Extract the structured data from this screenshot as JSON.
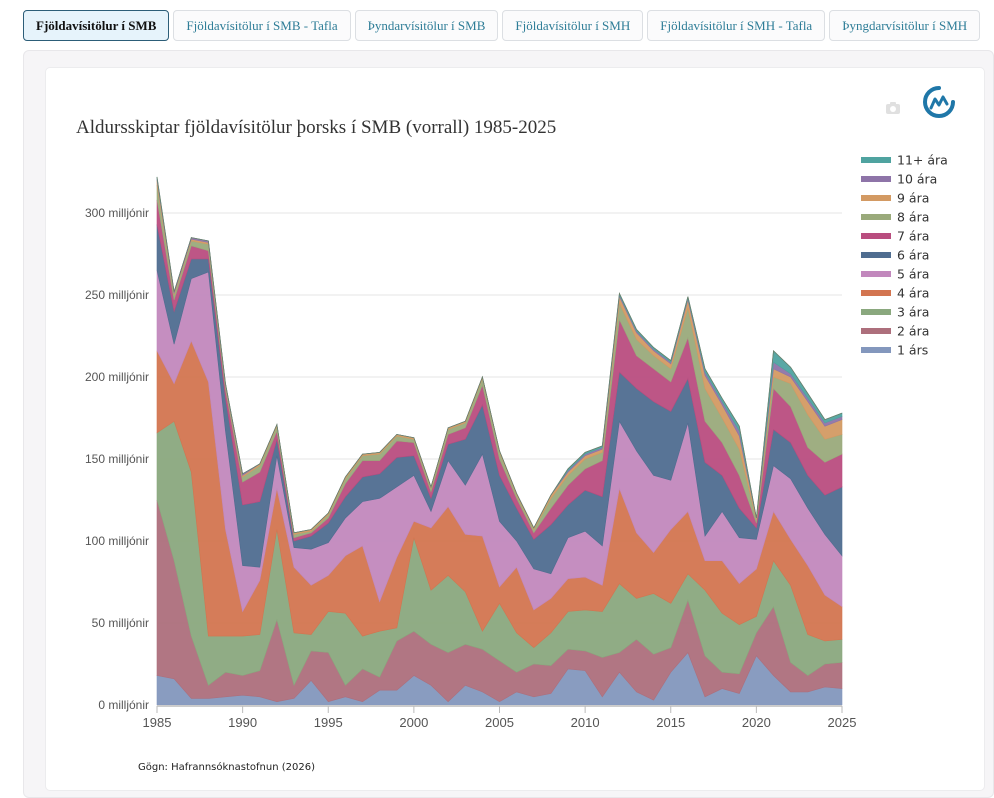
{
  "tabs": [
    {
      "label": "Fjöldavísitölur í SMB",
      "active": true
    },
    {
      "label": "Fjöldavísitölur í SMB - Tafla",
      "active": false
    },
    {
      "label": "Þyndarvísitölur í SMB",
      "active": false
    },
    {
      "label": "Fjöldavísitölur í SMH",
      "active": false
    },
    {
      "label": "Fjöldavísitölur í SMH - Tafla",
      "active": false
    },
    {
      "label": "Þyngdarvísitölur í SMH",
      "active": false
    }
  ],
  "source_note": "Gögn: Hafrannsóknastofnun (2026)",
  "icons": {
    "logo": "hafro-wave-logo-icon",
    "camera": "camera-icon"
  },
  "chart_data": {
    "type": "area",
    "stacked": true,
    "title": "Aldursskiptar fjöldavísitölur þorsks í SMB (vorrall) 1985-2025",
    "xlabel": "",
    "ylabel": "",
    "xlim": [
      1985,
      2025
    ],
    "ylim": [
      0,
      330
    ],
    "x_ticks": [
      1985,
      1990,
      1995,
      2000,
      2005,
      2010,
      2015,
      2020,
      2025
    ],
    "y_ticks": [
      0,
      50,
      100,
      150,
      200,
      250,
      300
    ],
    "y_tick_suffix": " milljónir",
    "grid": true,
    "legend_position": "right",
    "x": [
      1985,
      1986,
      1987,
      1988,
      1989,
      1990,
      1991,
      1992,
      1993,
      1994,
      1995,
      1996,
      1997,
      1998,
      1999,
      2000,
      2001,
      2002,
      2003,
      2004,
      2005,
      2006,
      2007,
      2008,
      2009,
      2010,
      2011,
      2012,
      2013,
      2014,
      2015,
      2016,
      2017,
      2018,
      2019,
      2020,
      2021,
      2022,
      2023,
      2024,
      2025
    ],
    "series": [
      {
        "name": "1 árs",
        "color": "#8397bd",
        "values": [
          18,
          16,
          4,
          4,
          5,
          6,
          5,
          2,
          4,
          15,
          2,
          5,
          2,
          9,
          9,
          18,
          12,
          2,
          12,
          8,
          2,
          8,
          5,
          7,
          22,
          21,
          5,
          20,
          8,
          3,
          20,
          32,
          5,
          10,
          7,
          30,
          18,
          8,
          8,
          11,
          10
        ]
      },
      {
        "name": "2 ára",
        "color": "#ad6f7c",
        "values": [
          107,
          72,
          38,
          8,
          15,
          12,
          16,
          50,
          8,
          18,
          30,
          7,
          20,
          8,
          30,
          27,
          25,
          30,
          25,
          26,
          25,
          12,
          20,
          17,
          12,
          12,
          24,
          12,
          32,
          28,
          15,
          32,
          25,
          10,
          12,
          14,
          42,
          18,
          10,
          14,
          16
        ]
      },
      {
        "name": "3 ára",
        "color": "#8aa87e",
        "values": [
          41,
          85,
          100,
          30,
          22,
          24,
          22,
          55,
          32,
          10,
          25,
          44,
          20,
          28,
          8,
          57,
          33,
          47,
          32,
          11,
          35,
          24,
          10,
          20,
          23,
          25,
          28,
          42,
          25,
          37,
          27,
          16,
          40,
          36,
          30,
          10,
          28,
          47,
          25,
          14,
          14
        ]
      },
      {
        "name": "4 ára",
        "color": "#d37550",
        "values": [
          50,
          23,
          80,
          155,
          65,
          15,
          33,
          25,
          40,
          30,
          22,
          35,
          55,
          18,
          43,
          10,
          38,
          42,
          35,
          58,
          10,
          40,
          23,
          21,
          20,
          20,
          16,
          58,
          40,
          25,
          45,
          38,
          18,
          32,
          25,
          29,
          30,
          28,
          42,
          28,
          20
        ]
      },
      {
        "name": "5 ára",
        "color": "#c288bd",
        "values": [
          49,
          24,
          38,
          67,
          60,
          28,
          8,
          20,
          12,
          22,
          20,
          23,
          27,
          63,
          43,
          28,
          10,
          28,
          30,
          50,
          40,
          16,
          25,
          15,
          25,
          28,
          24,
          41,
          50,
          47,
          30,
          54,
          15,
          30,
          28,
          18,
          28,
          37,
          35,
          37,
          31
        ]
      },
      {
        "name": "6 ára",
        "color": "#4f6d90",
        "values": [
          28,
          20,
          12,
          8,
          20,
          37,
          40,
          10,
          4,
          8,
          12,
          13,
          15,
          15,
          18,
          12,
          8,
          10,
          28,
          30,
          28,
          20,
          18,
          30,
          20,
          25,
          30,
          30,
          38,
          45,
          42,
          27,
          45,
          22,
          18,
          7,
          22,
          22,
          20,
          24,
          42
        ]
      },
      {
        "name": "7 ára",
        "color": "#b94d7f",
        "values": [
          15,
          7,
          8,
          5,
          5,
          14,
          18,
          5,
          2,
          2,
          3,
          8,
          10,
          8,
          10,
          8,
          4,
          6,
          7,
          12,
          10,
          6,
          4,
          10,
          12,
          13,
          22,
          32,
          20,
          20,
          18,
          25,
          25,
          20,
          20,
          3,
          25,
          22,
          17,
          20,
          20
        ]
      },
      {
        "name": "8 ára",
        "color": "#9aaa7b",
        "values": [
          9,
          3,
          3,
          4,
          2,
          3,
          4,
          3,
          2,
          1,
          2,
          3,
          3,
          4,
          3,
          2,
          2,
          3,
          3,
          4,
          4,
          2,
          2,
          6,
          6,
          6,
          5,
          10,
          10,
          8,
          8,
          18,
          20,
          15,
          16,
          2,
          7,
          14,
          20,
          14,
          12
        ]
      },
      {
        "name": "9 ára",
        "color": "#d39a63",
        "values": [
          3,
          1,
          1,
          1,
          1,
          1,
          1,
          1,
          1,
          1,
          1,
          1,
          1,
          1,
          1,
          1,
          1,
          1,
          1,
          1,
          1,
          1,
          1,
          2,
          2,
          2,
          2,
          4,
          4,
          3,
          3,
          5,
          8,
          8,
          8,
          1,
          5,
          4,
          8,
          8,
          9
        ]
      },
      {
        "name": "10 ára",
        "color": "#8e74a8",
        "values": [
          1,
          1,
          1,
          1,
          1,
          1,
          0,
          0,
          0,
          0,
          0,
          0,
          0,
          0,
          0,
          0,
          0,
          0,
          0,
          0,
          0,
          0,
          0,
          0,
          1,
          1,
          1,
          1,
          1,
          1,
          1,
          1,
          2,
          2,
          3,
          0,
          4,
          2,
          2,
          2,
          2
        ]
      },
      {
        "name": "11+ ára",
        "color": "#4fa3a0",
        "values": [
          1,
          0,
          0,
          0,
          0,
          0,
          0,
          0,
          0,
          0,
          0,
          0,
          0,
          0,
          0,
          0,
          0,
          0,
          0,
          0,
          0,
          0,
          0,
          0,
          1,
          1,
          1,
          1,
          1,
          1,
          1,
          1,
          2,
          2,
          3,
          0,
          7,
          4,
          3,
          2,
          2
        ]
      }
    ]
  }
}
